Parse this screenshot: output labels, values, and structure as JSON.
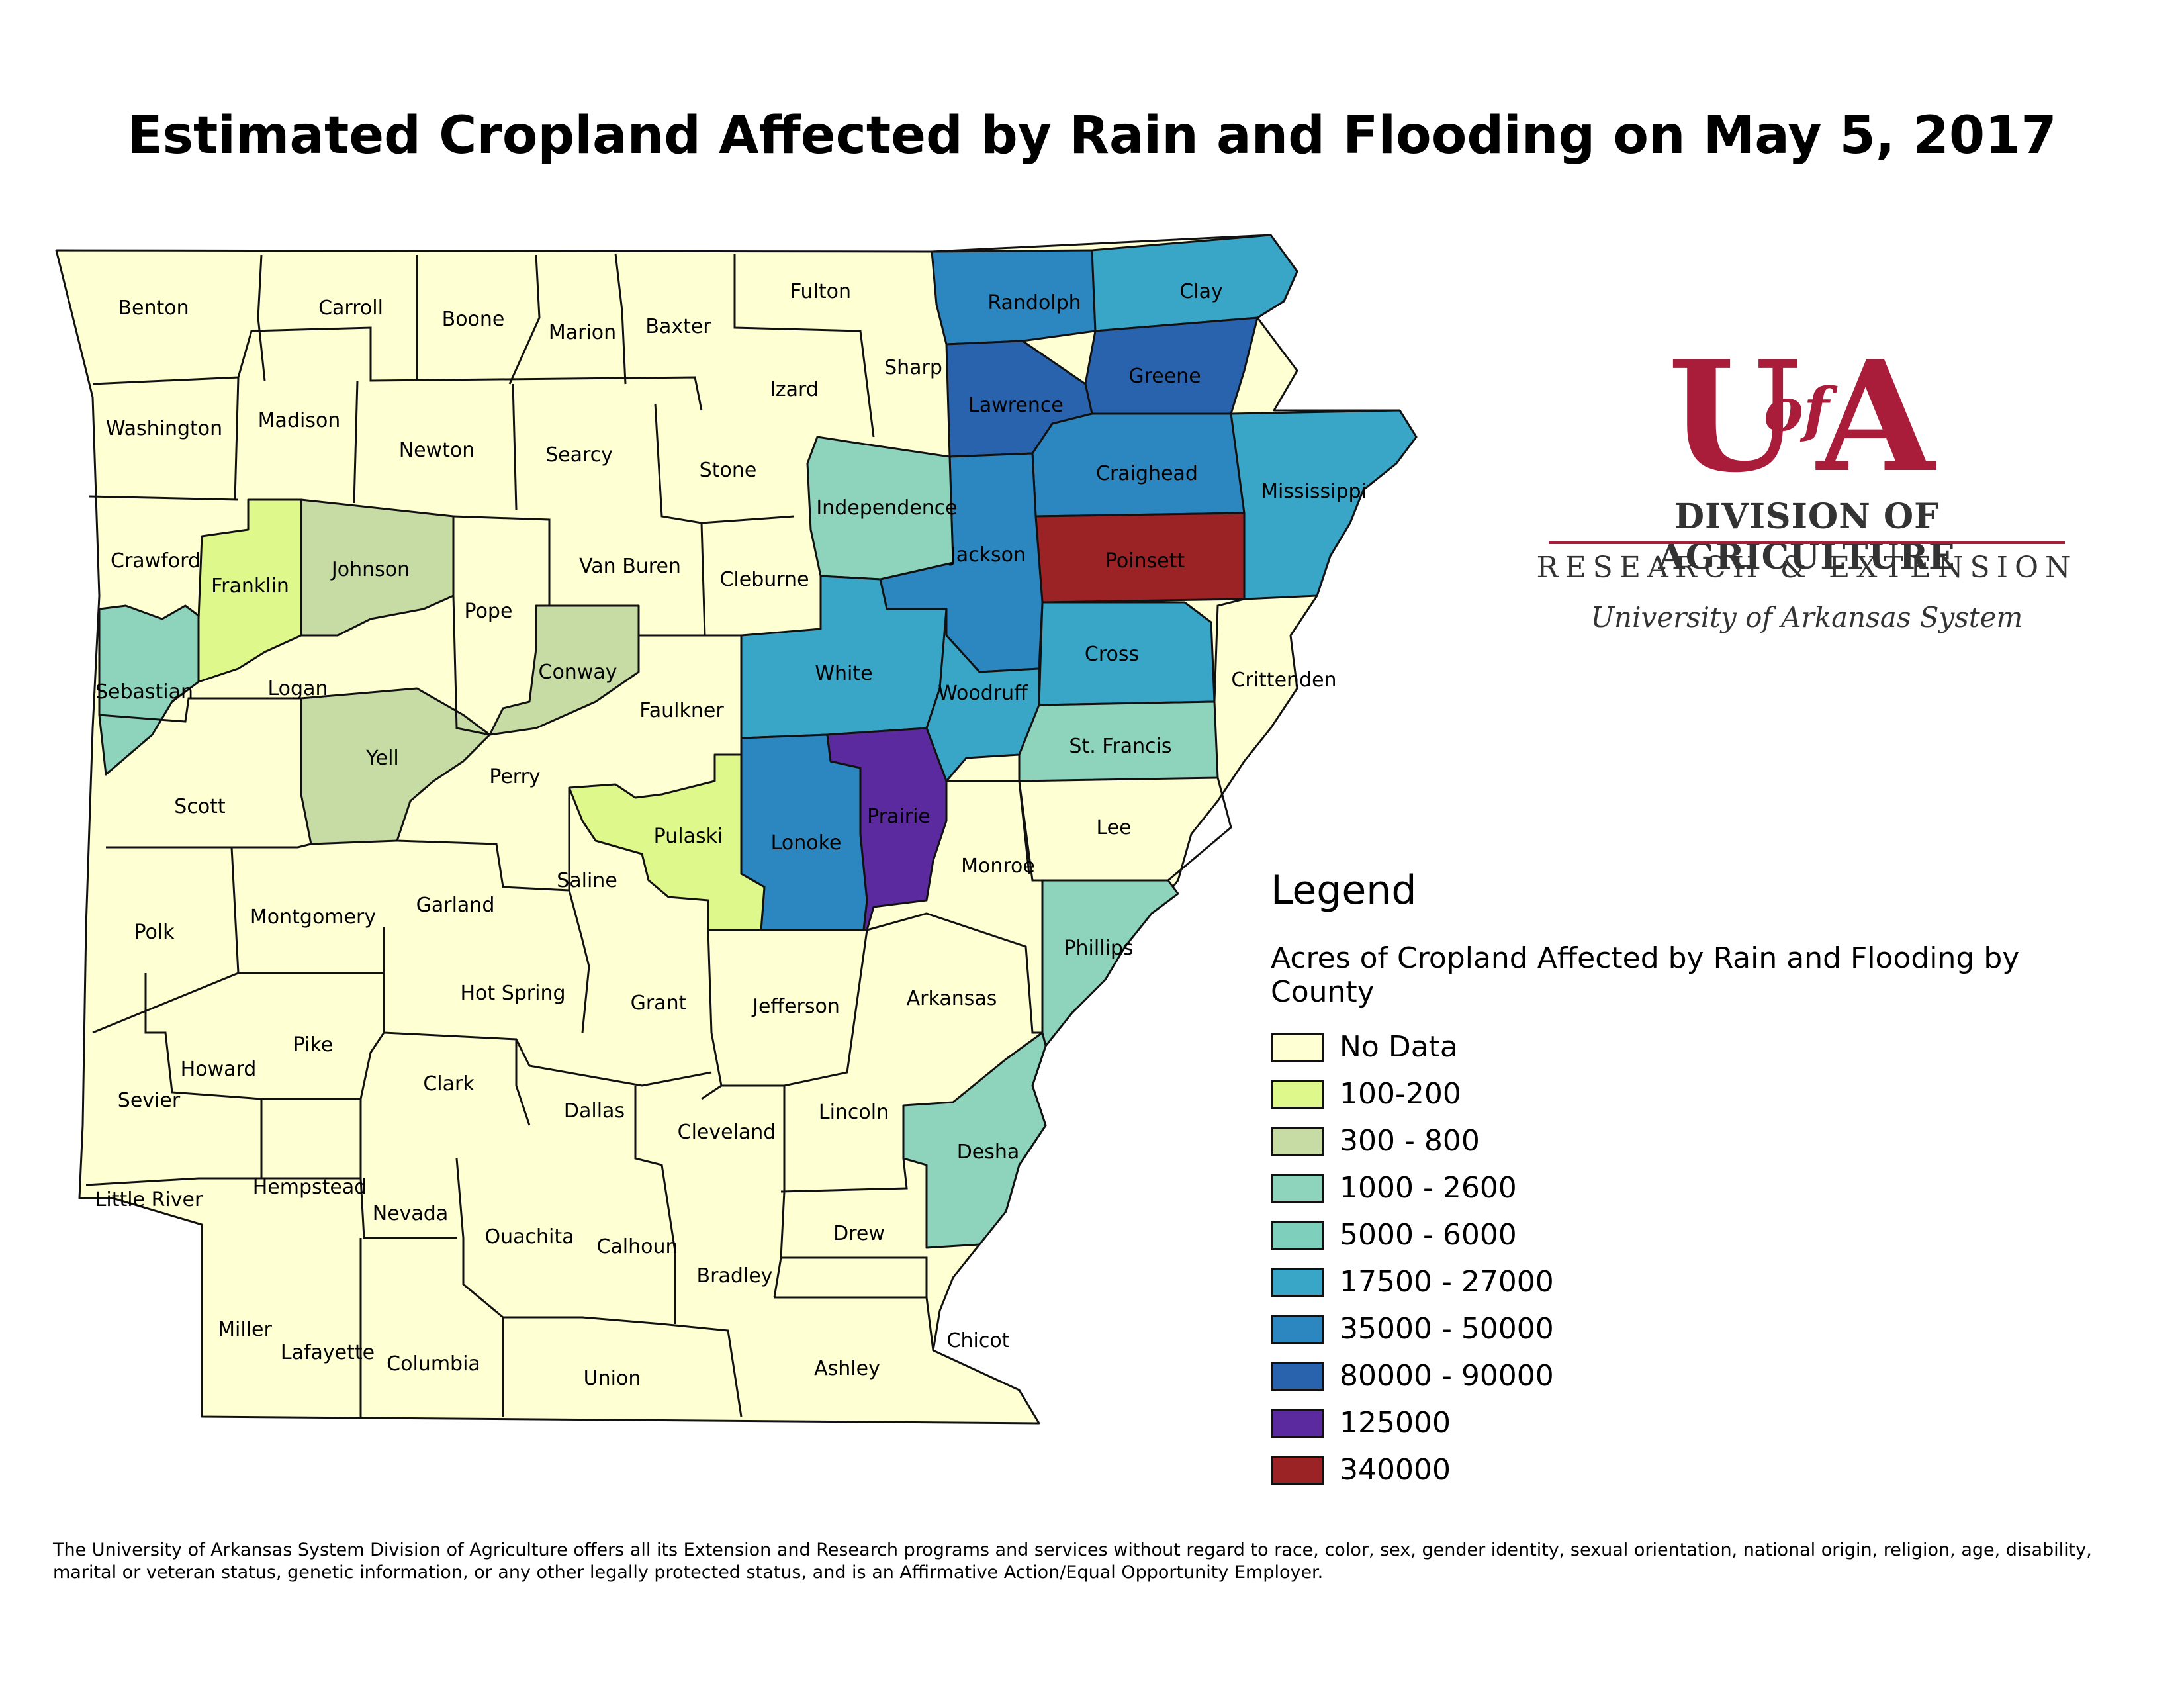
{
  "title": "Estimated Cropland Affected by Rain and Flooding on May 5, 2017",
  "colors": {
    "no_data": "#ffffd4",
    "c100_200": "#dff88b",
    "c300_800": "#c7dca5",
    "c1000_2600": "#8ed4bc",
    "c5000_6000": "#7ecfbb",
    "c17500_27000": "#3aa6c7",
    "c35000_50000": "#2c86c0",
    "c80000_90000": "#2a63ad",
    "c125000": "#5b2a9e",
    "c340000": "#9b2225"
  },
  "counties": {
    "benton": "Benton",
    "carroll": "Carroll",
    "boone": "Boone",
    "marion": "Marion",
    "baxter": "Baxter",
    "fulton": "Fulton",
    "sharp": "Sharp",
    "izard": "Izard",
    "randolph": "Randolph",
    "clay": "Clay",
    "greene": "Greene",
    "lawrence": "Lawrence",
    "washington": "Washington",
    "madison": "Madison",
    "newton": "Newton",
    "searcy": "Searcy",
    "stone": "Stone",
    "independence": "Independence",
    "craighead": "Craighead",
    "mississippi": "Mississippi",
    "crawford": "Crawford",
    "franklin": "Franklin",
    "johnson": "Johnson",
    "pope": "Pope",
    "van_buren": "Van Buren",
    "cleburne": "Cleburne",
    "jackson": "Jackson",
    "poinsett": "Poinsett",
    "sebastian": "Sebastian",
    "logan": "Logan",
    "conway": "Conway",
    "faulkner": "Faulkner",
    "white": "White",
    "woodruff": "Woodruff",
    "cross": "Cross",
    "crittenden": "Crittenden",
    "yell": "Yell",
    "scott": "Scott",
    "perry": "Perry",
    "pulaski": "Pulaski",
    "lonoke": "Lonoke",
    "prairie": "Prairie",
    "st_francis": "St. Francis",
    "lee": "Lee",
    "monroe": "Monroe",
    "polk": "Polk",
    "montgomery": "Montgomery",
    "garland": "Garland",
    "saline": "Saline",
    "phillips": "Phillips",
    "hot_spring": "Hot Spring",
    "grant": "Grant",
    "jefferson": "Jefferson",
    "arkansas": "Arkansas",
    "sevier": "Sevier",
    "howard": "Howard",
    "pike": "Pike",
    "clark": "Clark",
    "dallas": "Dallas",
    "cleveland": "Cleveland",
    "lincoln": "Lincoln",
    "desha": "Desha",
    "little_river": "Little River",
    "hempstead": "Hempstead",
    "nevada": "Nevada",
    "ouachita": "Ouachita",
    "calhoun": "Calhoun",
    "bradley": "Bradley",
    "drew": "Drew",
    "miller": "Miller",
    "lafayette": "Lafayette",
    "columbia": "Columbia",
    "union": "Union",
    "ashley": "Ashley",
    "chicot": "Chicot"
  },
  "logo": {
    "mark_u": "U",
    "mark_of": "of",
    "mark_a": "A",
    "division": "DIVISION OF AGRICULTURE",
    "research": "RESEARCH & EXTENSION",
    "system": "University of Arkansas System"
  },
  "legend": {
    "title": "Legend",
    "subtitle": "Acres of Cropland Affected by Rain and Flooding by County",
    "items": [
      {
        "label": "No Data",
        "color": "#ffffd4"
      },
      {
        "label": "100-200",
        "color": "#dff88b"
      },
      {
        "label": "300 - 800",
        "color": "#c7dca5"
      },
      {
        "label": "1000 - 2600",
        "color": "#8ed4bc"
      },
      {
        "label": "5000 - 6000",
        "color": "#7ecfbb"
      },
      {
        "label": "17500 - 27000",
        "color": "#3aa6c7"
      },
      {
        "label": "35000 - 50000",
        "color": "#2c86c0"
      },
      {
        "label": "80000 - 90000",
        "color": "#2a63ad"
      },
      {
        "label": "125000",
        "color": "#5b2a9e"
      },
      {
        "label": "340000",
        "color": "#9b2225"
      }
    ]
  },
  "footer": "The University of Arkansas System Division of Agriculture offers all its Extension and Research programs and services without regard to race, color, sex, gender identity, sexual orientation, national origin, religion, age, disability, marital or veteran status, genetic information, or any other legally protected status, and is an Affirmative Action/Equal Opportunity Employer."
}
